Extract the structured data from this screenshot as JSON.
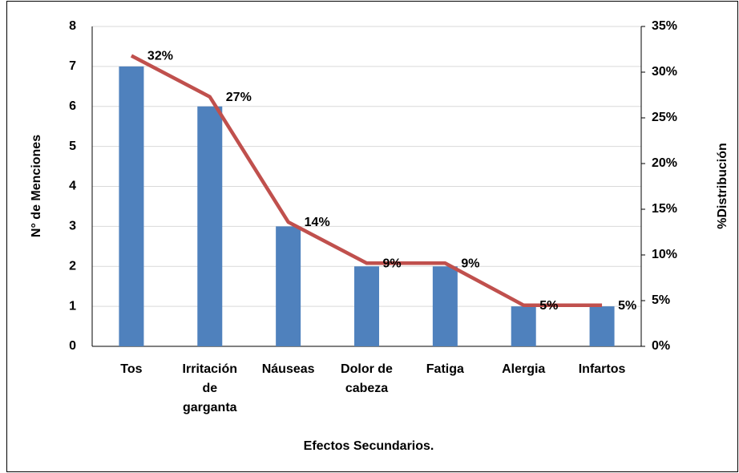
{
  "chart_data": {
    "type": "bar",
    "categories": [
      [
        "Tos"
      ],
      [
        "Irritación",
        "de",
        "garganta"
      ],
      [
        "Náuseas"
      ],
      [
        "Dolor de",
        "cabeza"
      ],
      [
        "Fatiga"
      ],
      [
        "Alergia"
      ],
      [
        "Infartos"
      ]
    ],
    "series": [
      {
        "type": "bar",
        "color": "#4f81bd",
        "values": [
          7,
          6,
          3,
          2,
          2,
          1,
          1
        ]
      },
      {
        "type": "line",
        "axis": "y2",
        "color": "#c0504d",
        "values": [
          31.8,
          27.3,
          13.6,
          9.1,
          9.1,
          4.5,
          4.5
        ],
        "value_labels": [
          "32%",
          "27%",
          "14%",
          "9%",
          "9%",
          "5%",
          "5%"
        ]
      }
    ],
    "ylabel": "N° de Menciones",
    "y2label": "%Distribución",
    "xlabel": "Efectos Secundarios.",
    "ylim": [
      0,
      8
    ],
    "yticks": [
      0,
      1,
      2,
      3,
      4,
      5,
      6,
      7,
      8
    ],
    "y2lim": [
      0,
      35
    ],
    "y2ticks": [
      {
        "value": 0,
        "label": "0%"
      },
      {
        "value": 5,
        "label": "5%"
      },
      {
        "value": 10,
        "label": "10%"
      },
      {
        "value": 15,
        "label": "15%"
      },
      {
        "value": 20,
        "label": "20%"
      },
      {
        "value": 25,
        "label": "25%"
      },
      {
        "value": 30,
        "label": "30%"
      },
      {
        "value": 35,
        "label": "35%"
      }
    ],
    "grid": true
  }
}
